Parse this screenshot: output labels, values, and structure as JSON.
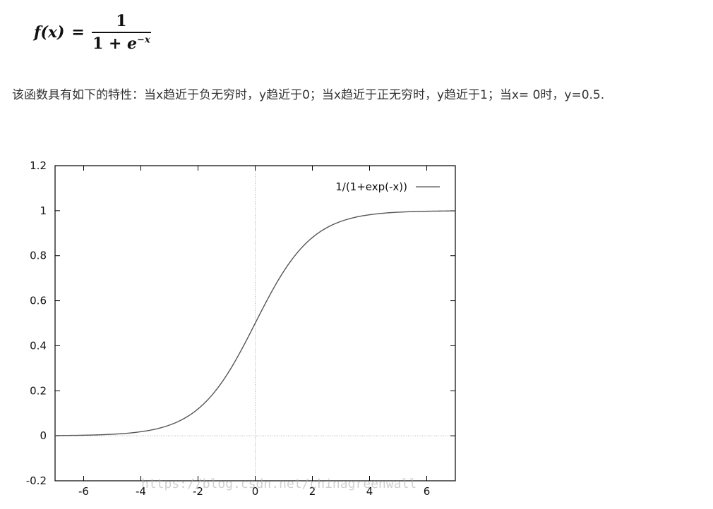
{
  "formula": {
    "lhs": "f(x)",
    "eq": "=",
    "numerator": "1",
    "denominator_base": "1 + ",
    "denominator_e": "e",
    "denominator_exp": "−x"
  },
  "description": "该函数具有如下的特性：当x趋近于负无穷时，y趋近于0；当x趋近于正无穷时，y趋近于1；当x= 0时，y=0.5.",
  "chart_data": {
    "type": "line",
    "xlim": [
      -7,
      7
    ],
    "ylim": [
      -0.2,
      1.2
    ],
    "x_ticks": [
      -6,
      -4,
      -2,
      0,
      2,
      4,
      6
    ],
    "y_ticks": [
      -0.2,
      0,
      0.2,
      0.4,
      0.6,
      0.8,
      1,
      1.2
    ],
    "x_tick_labels": [
      "-6",
      "-4",
      "-2",
      "0",
      "2",
      "4",
      "6"
    ],
    "y_tick_labels": [
      "-0.2",
      "0",
      "0.2",
      "0.4",
      "0.6",
      "0.8",
      "1",
      "1.2"
    ],
    "grid": false,
    "zero_lines": true,
    "legend_position": "top-right",
    "series": [
      {
        "name": "1/(1+exp(-x))",
        "color": "#555555",
        "x": [
          -7,
          -6,
          -5,
          -4,
          -3,
          -2,
          -1.5,
          -1,
          -0.5,
          0,
          0.5,
          1,
          1.5,
          2,
          3,
          4,
          5,
          6,
          7
        ],
        "y": [
          0.0009,
          0.0025,
          0.0067,
          0.018,
          0.0474,
          0.1192,
          0.1824,
          0.2689,
          0.3775,
          0.5,
          0.6225,
          0.7311,
          0.8176,
          0.8808,
          0.9526,
          0.982,
          0.9933,
          0.9975,
          0.9991
        ]
      }
    ]
  },
  "watermark": "https://blog.csdn.net/chinagreenwall"
}
